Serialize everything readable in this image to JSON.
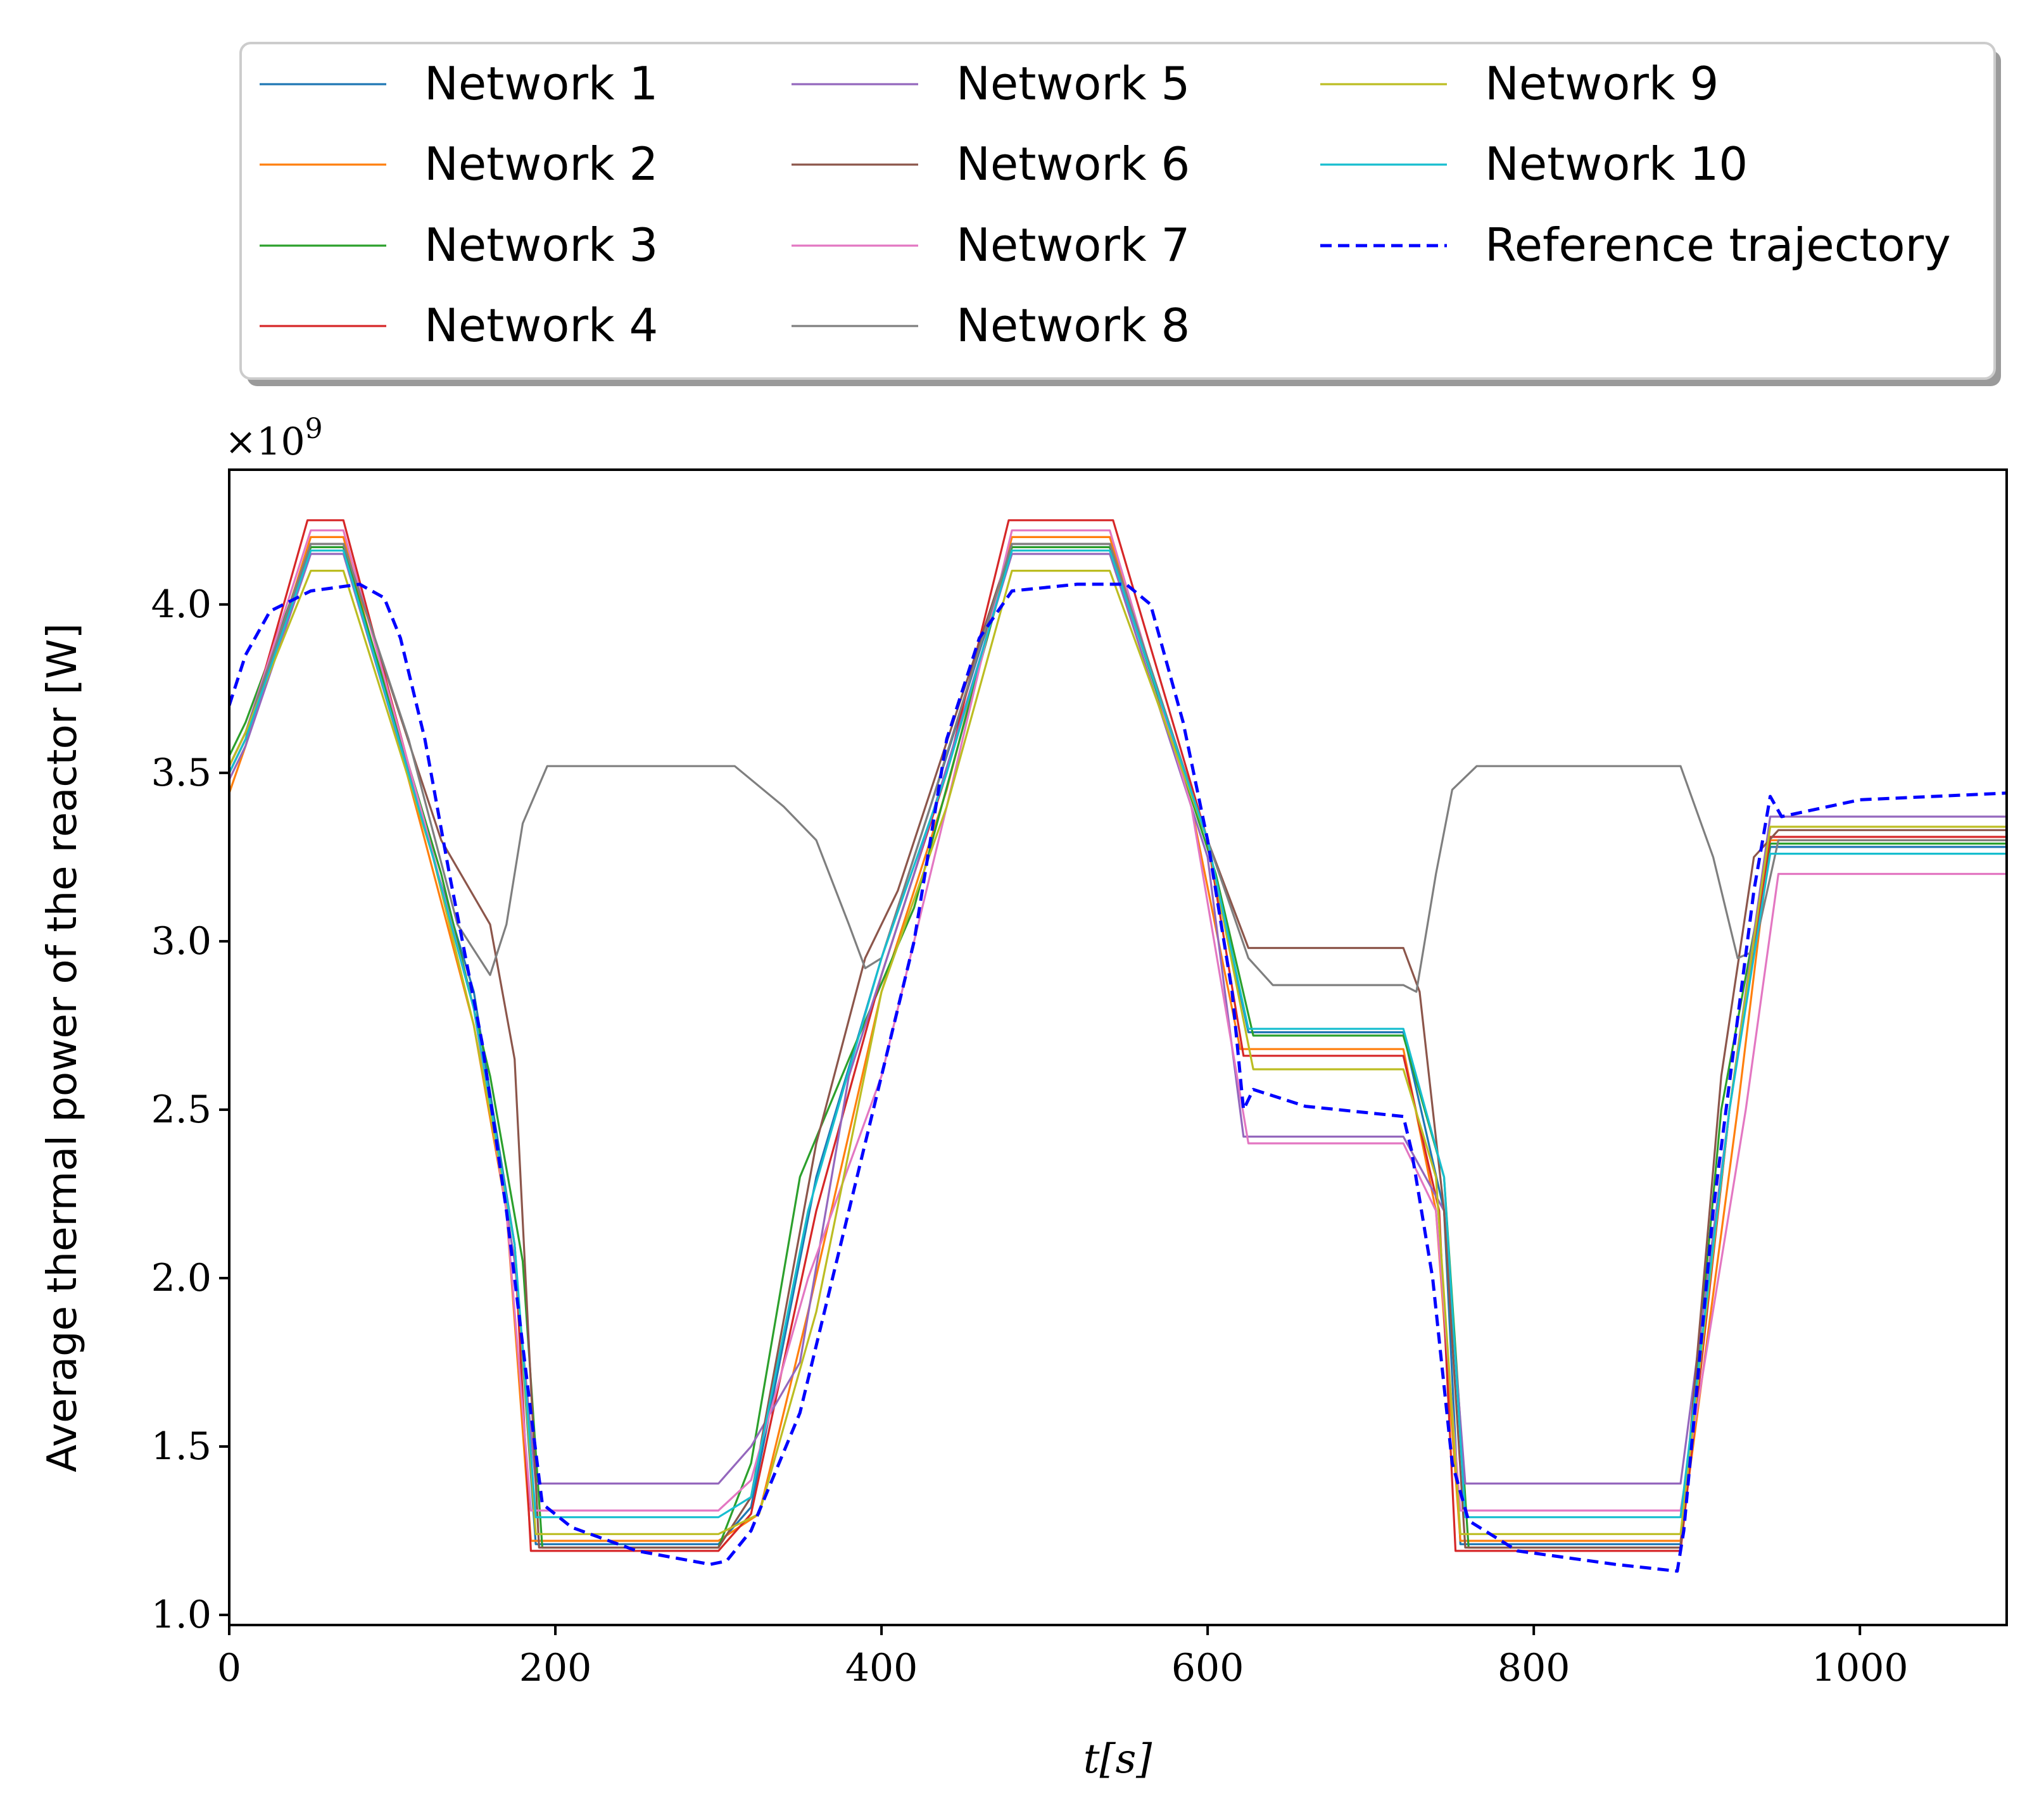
{
  "chart_data": {
    "type": "line",
    "xlabel": "t[s]",
    "ylabel": "Average thermal power of the reactor [W]",
    "y_offset_label": "×10",
    "y_offset_exponent": "9",
    "xlim": [
      0,
      1090
    ],
    "ylim": [
      0.97,
      4.4
    ],
    "x_ticks": [
      0,
      200,
      400,
      600,
      800,
      1000
    ],
    "x_tick_labels": [
      "0",
      "200",
      "400",
      "600",
      "800",
      "1000"
    ],
    "y_ticks": [
      1.0,
      1.5,
      2.0,
      2.5,
      3.0,
      3.5,
      4.0
    ],
    "y_tick_labels": [
      "1.0",
      "1.5",
      "2.0",
      "2.5",
      "3.0",
      "3.5",
      "4.0"
    ],
    "grid": false,
    "legend_position": "top",
    "series": [
      {
        "name": "Network 1",
        "color": "#1f77b4",
        "dash": false,
        "points": [
          [
            0,
            3.52
          ],
          [
            10,
            3.62
          ],
          [
            50,
            4.17
          ],
          [
            70,
            4.17
          ],
          [
            125,
            3.25
          ],
          [
            150,
            2.85
          ],
          [
            175,
            2.1
          ],
          [
            188,
            1.21
          ],
          [
            300,
            1.21
          ],
          [
            320,
            1.32
          ],
          [
            360,
            2.3
          ],
          [
            400,
            2.95
          ],
          [
            440,
            3.55
          ],
          [
            480,
            4.17
          ],
          [
            540,
            4.17
          ],
          [
            600,
            3.3
          ],
          [
            625,
            2.73
          ],
          [
            720,
            2.73
          ],
          [
            745,
            2.2
          ],
          [
            755,
            1.21
          ],
          [
            890,
            1.21
          ],
          [
            920,
            2.5
          ],
          [
            945,
            3.28
          ],
          [
            1090,
            3.28
          ]
        ]
      },
      {
        "name": "Network 2",
        "color": "#ff7f0e",
        "dash": false,
        "points": [
          [
            0,
            3.44
          ],
          [
            10,
            3.58
          ],
          [
            50,
            4.2
          ],
          [
            70,
            4.2
          ],
          [
            120,
            3.3
          ],
          [
            150,
            2.75
          ],
          [
            170,
            2.2
          ],
          [
            185,
            1.22
          ],
          [
            300,
            1.22
          ],
          [
            325,
            1.3
          ],
          [
            355,
            1.9
          ],
          [
            400,
            2.85
          ],
          [
            440,
            3.45
          ],
          [
            480,
            4.2
          ],
          [
            540,
            4.2
          ],
          [
            590,
            3.4
          ],
          [
            620,
            2.68
          ],
          [
            720,
            2.68
          ],
          [
            740,
            2.2
          ],
          [
            755,
            1.22
          ],
          [
            890,
            1.22
          ],
          [
            925,
            2.5
          ],
          [
            945,
            3.3
          ],
          [
            1090,
            3.3
          ]
        ]
      },
      {
        "name": "Network 3",
        "color": "#2ca02c",
        "dash": false,
        "points": [
          [
            0,
            3.55
          ],
          [
            10,
            3.65
          ],
          [
            50,
            4.17
          ],
          [
            70,
            4.17
          ],
          [
            130,
            3.2
          ],
          [
            160,
            2.6
          ],
          [
            180,
            2.05
          ],
          [
            192,
            1.2
          ],
          [
            300,
            1.2
          ],
          [
            320,
            1.45
          ],
          [
            350,
            2.3
          ],
          [
            380,
            2.65
          ],
          [
            420,
            3.1
          ],
          [
            480,
            4.17
          ],
          [
            540,
            4.17
          ],
          [
            605,
            3.2
          ],
          [
            628,
            2.72
          ],
          [
            720,
            2.72
          ],
          [
            745,
            2.3
          ],
          [
            760,
            1.2
          ],
          [
            890,
            1.2
          ],
          [
            915,
            2.5
          ],
          [
            945,
            3.29
          ],
          [
            1090,
            3.29
          ]
        ]
      },
      {
        "name": "Network 4",
        "color": "#d62728",
        "dash": false,
        "points": [
          [
            0,
            3.5
          ],
          [
            10,
            3.6
          ],
          [
            48,
            4.25
          ],
          [
            70,
            4.25
          ],
          [
            125,
            3.25
          ],
          [
            150,
            2.8
          ],
          [
            175,
            2.1
          ],
          [
            185,
            1.19
          ],
          [
            300,
            1.19
          ],
          [
            320,
            1.3
          ],
          [
            360,
            2.2
          ],
          [
            400,
            2.9
          ],
          [
            440,
            3.5
          ],
          [
            478,
            4.25
          ],
          [
            542,
            4.25
          ],
          [
            600,
            3.3
          ],
          [
            622,
            2.66
          ],
          [
            720,
            2.66
          ],
          [
            742,
            2.2
          ],
          [
            752,
            1.19
          ],
          [
            890,
            1.19
          ],
          [
            920,
            2.5
          ],
          [
            945,
            3.31
          ],
          [
            1090,
            3.31
          ]
        ]
      },
      {
        "name": "Network 5",
        "color": "#9467bd",
        "dash": false,
        "points": [
          [
            0,
            3.48
          ],
          [
            10,
            3.58
          ],
          [
            50,
            4.15
          ],
          [
            70,
            4.15
          ],
          [
            125,
            3.25
          ],
          [
            150,
            2.8
          ],
          [
            175,
            2.05
          ],
          [
            188,
            1.39
          ],
          [
            300,
            1.39
          ],
          [
            320,
            1.5
          ],
          [
            350,
            1.75
          ],
          [
            380,
            2.6
          ],
          [
            420,
            3.2
          ],
          [
            480,
            4.15
          ],
          [
            540,
            4.15
          ],
          [
            600,
            3.25
          ],
          [
            622,
            2.42
          ],
          [
            720,
            2.42
          ],
          [
            745,
            2.2
          ],
          [
            758,
            1.39
          ],
          [
            890,
            1.39
          ],
          [
            920,
            2.5
          ],
          [
            945,
            3.37
          ],
          [
            1090,
            3.37
          ]
        ]
      },
      {
        "name": "Network 6",
        "color": "#8c564b",
        "dash": false,
        "points": [
          [
            0,
            3.5
          ],
          [
            10,
            3.6
          ],
          [
            50,
            4.18
          ],
          [
            70,
            4.18
          ],
          [
            130,
            3.3
          ],
          [
            160,
            3.05
          ],
          [
            175,
            2.65
          ],
          [
            190,
            1.2
          ],
          [
            300,
            1.2
          ],
          [
            320,
            1.35
          ],
          [
            360,
            2.4
          ],
          [
            390,
            2.95
          ],
          [
            410,
            3.15
          ],
          [
            480,
            4.18
          ],
          [
            540,
            4.18
          ],
          [
            600,
            3.3
          ],
          [
            625,
            2.98
          ],
          [
            720,
            2.98
          ],
          [
            730,
            2.85
          ],
          [
            745,
            2.2
          ],
          [
            758,
            1.2
          ],
          [
            890,
            1.2
          ],
          [
            915,
            2.6
          ],
          [
            935,
            3.25
          ],
          [
            950,
            3.33
          ],
          [
            1090,
            3.33
          ]
        ]
      },
      {
        "name": "Network 7",
        "color": "#e377c2",
        "dash": false,
        "points": [
          [
            0,
            3.52
          ],
          [
            10,
            3.62
          ],
          [
            50,
            4.22
          ],
          [
            70,
            4.22
          ],
          [
            120,
            3.35
          ],
          [
            150,
            2.8
          ],
          [
            170,
            2.2
          ],
          [
            185,
            1.31
          ],
          [
            300,
            1.31
          ],
          [
            320,
            1.4
          ],
          [
            355,
            2.0
          ],
          [
            400,
            2.6
          ],
          [
            440,
            3.4
          ],
          [
            480,
            4.22
          ],
          [
            540,
            4.22
          ],
          [
            590,
            3.4
          ],
          [
            625,
            2.4
          ],
          [
            720,
            2.4
          ],
          [
            740,
            2.2
          ],
          [
            755,
            1.31
          ],
          [
            890,
            1.31
          ],
          [
            930,
            2.5
          ],
          [
            950,
            3.2
          ],
          [
            1090,
            3.2
          ]
        ]
      },
      {
        "name": "Network 8",
        "color": "#7f7f7f",
        "dash": false,
        "points": [
          [
            0,
            3.52
          ],
          [
            10,
            3.62
          ],
          [
            50,
            4.18
          ],
          [
            70,
            4.18
          ],
          [
            110,
            3.6
          ],
          [
            140,
            3.05
          ],
          [
            160,
            2.9
          ],
          [
            170,
            3.05
          ],
          [
            180,
            3.35
          ],
          [
            195,
            3.52
          ],
          [
            310,
            3.52
          ],
          [
            340,
            3.4
          ],
          [
            360,
            3.3
          ],
          [
            380,
            3.05
          ],
          [
            390,
            2.92
          ],
          [
            400,
            2.95
          ],
          [
            430,
            3.4
          ],
          [
            480,
            4.18
          ],
          [
            540,
            4.18
          ],
          [
            600,
            3.3
          ],
          [
            625,
            2.95
          ],
          [
            640,
            2.87
          ],
          [
            720,
            2.87
          ],
          [
            728,
            2.85
          ],
          [
            740,
            3.2
          ],
          [
            750,
            3.45
          ],
          [
            765,
            3.52
          ],
          [
            890,
            3.52
          ],
          [
            910,
            3.25
          ],
          [
            925,
            2.95
          ],
          [
            935,
            2.97
          ],
          [
            950,
            3.3
          ],
          [
            1090,
            3.3
          ]
        ]
      },
      {
        "name": "Network 9",
        "color": "#bcbd22",
        "dash": false,
        "points": [
          [
            0,
            3.52
          ],
          [
            10,
            3.62
          ],
          [
            50,
            4.1
          ],
          [
            70,
            4.1
          ],
          [
            125,
            3.25
          ],
          [
            150,
            2.75
          ],
          [
            175,
            2.1
          ],
          [
            188,
            1.24
          ],
          [
            300,
            1.24
          ],
          [
            325,
            1.3
          ],
          [
            360,
            1.9
          ],
          [
            400,
            2.85
          ],
          [
            440,
            3.4
          ],
          [
            480,
            4.1
          ],
          [
            540,
            4.1
          ],
          [
            600,
            3.3
          ],
          [
            628,
            2.62
          ],
          [
            720,
            2.62
          ],
          [
            740,
            2.3
          ],
          [
            755,
            1.24
          ],
          [
            890,
            1.24
          ],
          [
            920,
            2.5
          ],
          [
            945,
            3.34
          ],
          [
            1090,
            3.34
          ]
        ]
      },
      {
        "name": "Network 10",
        "color": "#17becf",
        "dash": false,
        "points": [
          [
            0,
            3.5
          ],
          [
            10,
            3.6
          ],
          [
            50,
            4.16
          ],
          [
            70,
            4.16
          ],
          [
            125,
            3.25
          ],
          [
            150,
            2.8
          ],
          [
            175,
            2.1
          ],
          [
            188,
            1.29
          ],
          [
            300,
            1.29
          ],
          [
            320,
            1.35
          ],
          [
            355,
            2.2
          ],
          [
            400,
            2.95
          ],
          [
            440,
            3.5
          ],
          [
            480,
            4.16
          ],
          [
            540,
            4.16
          ],
          [
            600,
            3.3
          ],
          [
            625,
            2.74
          ],
          [
            720,
            2.74
          ],
          [
            745,
            2.3
          ],
          [
            758,
            1.29
          ],
          [
            890,
            1.29
          ],
          [
            920,
            2.5
          ],
          [
            945,
            3.26
          ],
          [
            1090,
            3.26
          ]
        ]
      },
      {
        "name": "Reference trajectory",
        "color": "#0000ff",
        "dash": true,
        "points": [
          [
            0,
            3.7
          ],
          [
            10,
            3.85
          ],
          [
            25,
            3.98
          ],
          [
            50,
            4.04
          ],
          [
            80,
            4.06
          ],
          [
            95,
            4.02
          ],
          [
            105,
            3.9
          ],
          [
            120,
            3.6
          ],
          [
            135,
            3.2
          ],
          [
            155,
            2.7
          ],
          [
            170,
            2.2
          ],
          [
            185,
            1.6
          ],
          [
            192,
            1.33
          ],
          [
            210,
            1.26
          ],
          [
            250,
            1.19
          ],
          [
            295,
            1.15
          ],
          [
            305,
            1.16
          ],
          [
            320,
            1.25
          ],
          [
            350,
            1.6
          ],
          [
            390,
            2.4
          ],
          [
            420,
            3.0
          ],
          [
            440,
            3.6
          ],
          [
            460,
            3.9
          ],
          [
            480,
            4.04
          ],
          [
            520,
            4.06
          ],
          [
            550,
            4.06
          ],
          [
            565,
            4.0
          ],
          [
            585,
            3.65
          ],
          [
            600,
            3.3
          ],
          [
            615,
            2.85
          ],
          [
            622,
            2.5
          ],
          [
            628,
            2.56
          ],
          [
            660,
            2.51
          ],
          [
            720,
            2.48
          ],
          [
            725,
            2.38
          ],
          [
            738,
            2.0
          ],
          [
            750,
            1.45
          ],
          [
            760,
            1.28
          ],
          [
            790,
            1.19
          ],
          [
            850,
            1.15
          ],
          [
            888,
            1.13
          ],
          [
            892,
            1.25
          ],
          [
            910,
            2.2
          ],
          [
            935,
            3.15
          ],
          [
            945,
            3.43
          ],
          [
            952,
            3.37
          ],
          [
            1000,
            3.42
          ],
          [
            1090,
            3.44
          ]
        ]
      }
    ]
  }
}
